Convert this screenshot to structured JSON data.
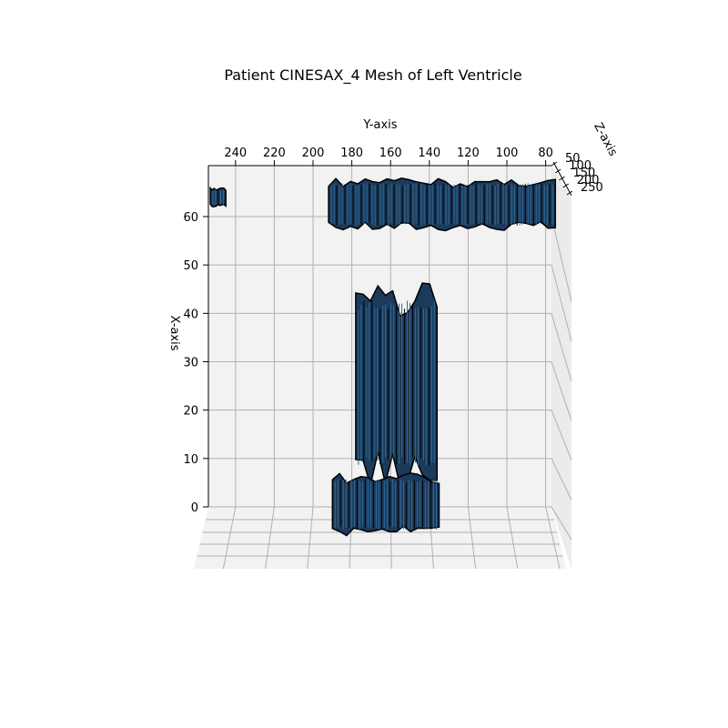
{
  "chart_data": {
    "type": "surface3d",
    "title": "Patient CINESAX_4 Mesh of Left Ventricle",
    "xlabel": "X-axis",
    "ylabel": "Y-axis",
    "zlabel": "Z-axis",
    "x_ticks": [
      0,
      10,
      20,
      30,
      40,
      50,
      60
    ],
    "y_ticks": [
      240,
      220,
      200,
      180,
      160,
      140,
      120,
      100,
      80
    ],
    "z_ticks": [
      50,
      100,
      150,
      200,
      250
    ],
    "xlim": [
      -6,
      70
    ],
    "ylim": [
      77,
      254
    ],
    "zlim": [
      25,
      275
    ],
    "grid": true,
    "colors": {
      "surface_fill": "#1c3a5a",
      "surface_edge": "#000000",
      "surface_stripe": "#2f6a9a",
      "pane": "#f2f2f2",
      "grid": "#b0b0b0"
    },
    "mesh_regions": [
      {
        "name": "upper-band",
        "y_range": [
          75,
          192
        ],
        "x_range": [
          57,
          68
        ]
      },
      {
        "name": "small-blob",
        "y_range": [
          245,
          253
        ],
        "x_range": [
          62,
          66
        ]
      },
      {
        "name": "central-column",
        "y_range": [
          136,
          178
        ],
        "x_range": [
          4,
          47
        ]
      },
      {
        "name": "lower-base",
        "y_range": [
          135,
          190
        ],
        "x_range": [
          -6,
          7
        ]
      }
    ]
  }
}
